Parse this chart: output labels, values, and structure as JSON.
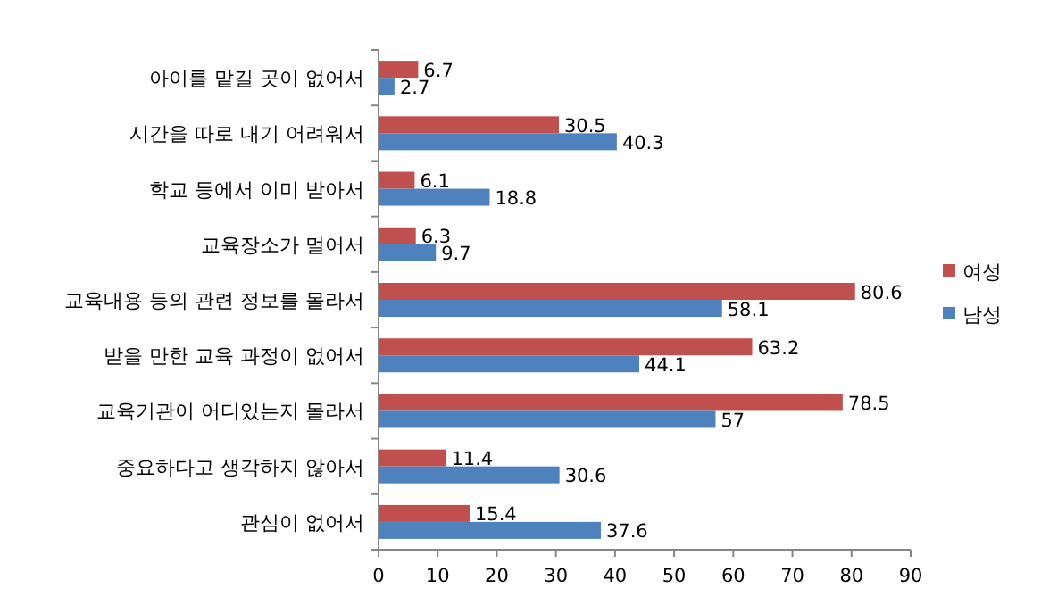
{
  "chart_data": {
    "type": "bar",
    "orientation": "horizontal",
    "categories": [
      "아이를 맡길 곳이 없어서",
      "시간을 따로 내기 어려워서",
      "학교 등에서 이미 받아서",
      "교육장소가 멀어서",
      "교육내용 등의 관련 정보를 몰라서",
      "받을 만한 교육 과정이 없어서",
      "교육기관이 어디있는지 몰라서",
      "중요하다고 생각하지 않아서",
      "관심이 없어서"
    ],
    "series": [
      {
        "name": "여성",
        "color": "#c0504d",
        "values": [
          6.7,
          30.5,
          6.1,
          6.3,
          80.6,
          63.2,
          78.5,
          11.4,
          15.4
        ]
      },
      {
        "name": "남성",
        "color": "#4f81bd",
        "values": [
          2.7,
          40.3,
          18.8,
          9.7,
          58.1,
          44.1,
          57,
          30.6,
          37.6
        ]
      }
    ],
    "xlim": [
      0,
      90
    ],
    "xticks": [
      0,
      10,
      20,
      30,
      40,
      50,
      60,
      70,
      80,
      90
    ],
    "data_labels": true,
    "legend": "right",
    "grid": false
  }
}
